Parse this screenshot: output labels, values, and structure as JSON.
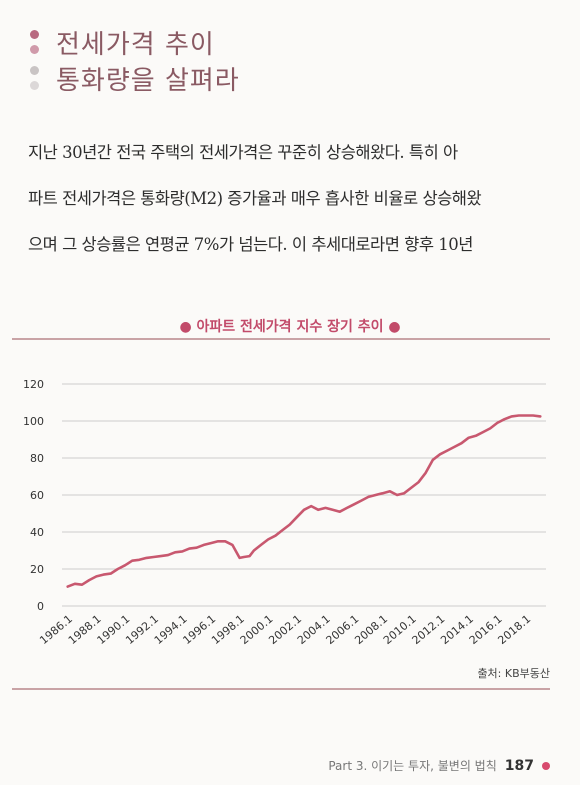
{
  "heading": {
    "line1": "전세가격 추이",
    "line2": "통화량을 살펴라",
    "dot_colors": [
      "#b86a80",
      "#d09aaa",
      "#c9c4c4",
      "#dcd8d8"
    ]
  },
  "body": {
    "lines": [
      "지난 30년간 전국 주택의 전세가격은 꾸준히 상승해왔다. 특히 아",
      "파트 전세가격은 통화량(M2) 증가율과 매우 흡사한 비율로 상승해왔",
      "으며 그 상승률은 연평균 7%가 넘는다. 이 추세대로라면 향후 10년"
    ]
  },
  "chart_title": "아파트 전세가격 지수 장기 추이",
  "source": "출처: KB부동산",
  "footer": {
    "text": "Part 3. 이기는 투자, 불변의 법칙",
    "page": "187"
  },
  "colors": {
    "accent": "#c24b6a",
    "line": "#c8586f",
    "heading": "#8a5a63"
  },
  "chart_data": {
    "type": "line",
    "title": "아파트 전세가격 지수 장기 추이",
    "xlabel": "",
    "ylabel": "",
    "ylim": [
      0,
      120
    ],
    "yticks": [
      0,
      20,
      40,
      60,
      80,
      100,
      120
    ],
    "x_tick_labels": [
      "1986.1",
      "1988.1",
      "1990.1",
      "1992.1",
      "1994.1",
      "1996.1",
      "1998.1",
      "2000.1",
      "2002.1",
      "2004.1",
      "2006.1",
      "2008.1",
      "2010.1",
      "2012.1",
      "2014.1",
      "2016.1",
      "2018.1"
    ],
    "grid": true,
    "series": [
      {
        "x": [
          1986.0,
          1986.5,
          1987.0,
          1987.5,
          1988.0,
          1988.5,
          1989.0,
          1989.5,
          1990.0,
          1990.5,
          1991.0,
          1991.5,
          1992.0,
          1992.5,
          1993.0,
          1993.5,
          1994.0,
          1994.5,
          1995.0,
          1995.5,
          1996.0,
          1996.5,
          1997.0,
          1997.5,
          1998.0,
          1998.3,
          1998.7,
          1999.0,
          1999.5,
          2000.0,
          2000.5,
          2001.0,
          2001.5,
          2002.0,
          2002.5,
          2003.0,
          2003.5,
          2004.0,
          2004.5,
          2005.0,
          2005.5,
          2006.0,
          2006.5,
          2007.0,
          2007.5,
          2008.0,
          2008.5,
          2009.0,
          2009.5,
          2010.0,
          2010.5,
          2011.0,
          2011.5,
          2012.0,
          2012.5,
          2013.0,
          2013.5,
          2014.0,
          2014.5,
          2015.0,
          2015.5,
          2016.0,
          2016.5,
          2017.0,
          2017.5,
          2018.0,
          2018.5,
          2019.0
        ],
        "values": [
          10.5,
          12,
          11.5,
          14,
          16,
          17,
          17.5,
          20,
          22,
          24.5,
          25,
          26,
          26.5,
          27,
          27.5,
          29,
          29.5,
          31,
          31.5,
          33,
          34,
          35,
          35,
          33,
          26,
          26.5,
          27,
          30,
          33,
          36,
          38,
          41,
          44,
          48,
          52,
          54,
          52,
          53,
          52,
          51,
          53,
          55,
          57,
          59,
          60,
          61,
          62,
          60,
          61,
          64,
          67,
          72,
          79,
          82,
          84,
          86,
          88,
          91,
          92,
          94,
          96,
          99,
          101,
          102.5,
          103,
          103,
          103,
          102.5
        ]
      }
    ]
  }
}
